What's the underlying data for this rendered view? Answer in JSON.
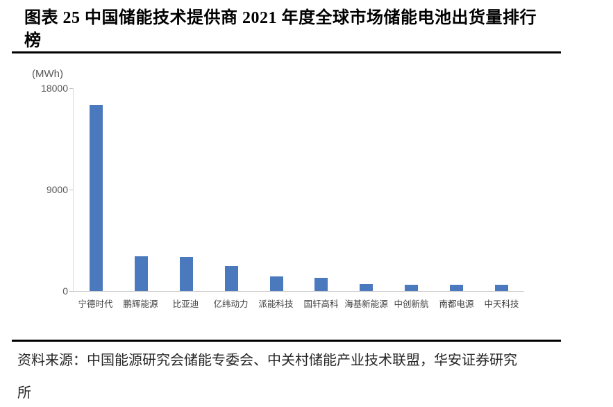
{
  "figure": {
    "title_lines": [
      "图表 25 中国储能技术提供商 2021 年度全球市场储能电池出货量排行",
      "榜"
    ],
    "source_lines": [
      "资料来源：中国能源研究会储能专委会、中关村储能产业技术联盟，华安证券研究",
      "所"
    ]
  },
  "chart_data": {
    "type": "bar",
    "title": "中国储能技术提供商2021年度全球市场储能电池出货量排行榜",
    "unit_label": "(MWh)",
    "ylabel": "MWh",
    "xlabel": "",
    "categories": [
      "宁德时代",
      "鹏辉能源",
      "比亚迪",
      "亿纬动力",
      "派能科技",
      "国轩高科",
      "海基新能源",
      "中创新航",
      "南都电源",
      "中天科技"
    ],
    "values": [
      16500,
      3100,
      3000,
      2200,
      1300,
      1200,
      600,
      580,
      560,
      550
    ],
    "yticks": [
      0,
      9000,
      18000
    ],
    "ylim": [
      0,
      18000
    ],
    "grid": false,
    "legend": false,
    "bar_color": "#4b79bd",
    "axis_color": "#c9c9c9",
    "tick_label_color": "#595959"
  }
}
